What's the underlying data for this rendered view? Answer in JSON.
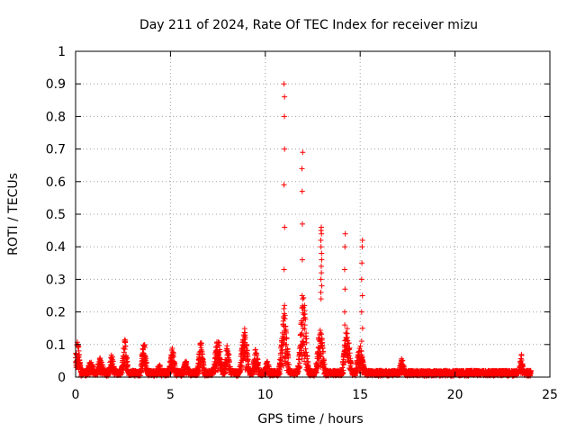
{
  "chart_data": {
    "type": "scatter",
    "title": "Day 211 of 2024, Rate Of TEC Index for receiver mizu",
    "xlabel": "GPS time / hours",
    "ylabel": "ROTI / TECUs",
    "xlim": [
      0,
      25
    ],
    "ylim": [
      0,
      1
    ],
    "x_ticks": [
      "0",
      "5",
      "10",
      "15",
      "20",
      "25"
    ],
    "y_ticks": [
      "0",
      "0.1",
      "0.2",
      "0.3",
      "0.4",
      "0.5",
      "0.6",
      "0.7",
      "0.8",
      "0.9",
      "1"
    ],
    "grid": true,
    "marker": "+",
    "series_color": "#ff0000",
    "series": [
      {
        "name": "ROTI",
        "background_level": 0.02,
        "x_range": [
          0,
          24
        ],
        "bursts": [
          {
            "x": 0.1,
            "width": 0.15,
            "peak": 0.11
          },
          {
            "x": 0.8,
            "width": 0.2,
            "peak": 0.05
          },
          {
            "x": 1.3,
            "width": 0.2,
            "peak": 0.06
          },
          {
            "x": 1.9,
            "width": 0.15,
            "peak": 0.07
          },
          {
            "x": 2.6,
            "width": 0.15,
            "peak": 0.12
          },
          {
            "x": 3.6,
            "width": 0.15,
            "peak": 0.11
          },
          {
            "x": 4.4,
            "width": 0.15,
            "peak": 0.04
          },
          {
            "x": 5.1,
            "width": 0.15,
            "peak": 0.09
          },
          {
            "x": 5.8,
            "width": 0.15,
            "peak": 0.05
          },
          {
            "x": 6.6,
            "width": 0.15,
            "peak": 0.12
          },
          {
            "x": 7.5,
            "width": 0.2,
            "peak": 0.12
          },
          {
            "x": 8.0,
            "width": 0.15,
            "peak": 0.1
          },
          {
            "x": 8.9,
            "width": 0.2,
            "peak": 0.15
          },
          {
            "x": 9.5,
            "width": 0.15,
            "peak": 0.09
          },
          {
            "x": 10.1,
            "width": 0.15,
            "peak": 0.05
          },
          {
            "x": 11.0,
            "width": 0.2,
            "peak": 0.2
          },
          {
            "x": 12.0,
            "width": 0.2,
            "peak": 0.25
          },
          {
            "x": 12.9,
            "width": 0.2,
            "peak": 0.15
          },
          {
            "x": 14.3,
            "width": 0.2,
            "peak": 0.15
          },
          {
            "x": 15.0,
            "width": 0.2,
            "peak": 0.1
          },
          {
            "x": 17.2,
            "width": 0.15,
            "peak": 0.06
          },
          {
            "x": 23.5,
            "width": 0.1,
            "peak": 0.07
          }
        ],
        "spikes": [
          {
            "x": 11.0,
            "y": [
              0.9,
              0.86,
              0.8,
              0.7,
              0.59,
              0.46,
              0.33,
              0.22,
              0.21
            ]
          },
          {
            "x": 11.95,
            "y": [
              0.69,
              0.64,
              0.57,
              0.47,
              0.36,
              0.25,
              0.24
            ]
          },
          {
            "x": 12.95,
            "y": [
              0.46,
              0.45,
              0.44,
              0.42,
              0.4,
              0.38,
              0.36,
              0.34,
              0.32,
              0.3,
              0.28,
              0.26,
              0.24
            ]
          },
          {
            "x": 14.2,
            "y": [
              0.44,
              0.4,
              0.33,
              0.27,
              0.2,
              0.16
            ]
          },
          {
            "x": 15.1,
            "y": [
              0.42,
              0.4,
              0.35,
              0.3,
              0.25,
              0.2,
              0.15,
              0.11
            ]
          }
        ]
      }
    ]
  }
}
